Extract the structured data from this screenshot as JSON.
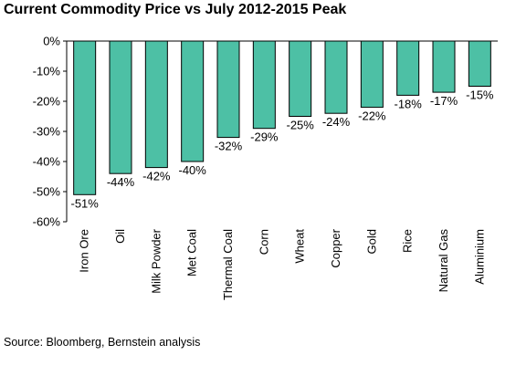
{
  "chart_data": {
    "type": "bar",
    "title": "Current Commodity Price vs July 2012-2015 Peak",
    "source": "Source: Bloomberg, Bernstein analysis",
    "categories": [
      "Iron Ore",
      "Oil",
      "Milk Powder",
      "Met Coal",
      "Thermal Coal",
      "Corn",
      "Wheat",
      "Copper",
      "Gold",
      "Rice",
      "Natural Gas",
      "Aluminium"
    ],
    "values": [
      -51,
      -44,
      -42,
      -40,
      -32,
      -29,
      -25,
      -24,
      -22,
      -18,
      -17,
      -15
    ],
    "data_labels": [
      "-51%",
      "-44%",
      "-42%",
      "-40%",
      "-32%",
      "-29%",
      "-25%",
      "-24%",
      "-22%",
      "-18%",
      "-17%",
      "-15%"
    ],
    "ylim": [
      -60,
      0
    ],
    "yticks": [
      0,
      -10,
      -20,
      -30,
      -40,
      -50,
      -60
    ],
    "ytick_labels": [
      "0%",
      "-10%",
      "-20%",
      "-30%",
      "-40%",
      "-50%",
      "-60%"
    ],
    "xlabel": "",
    "ylabel": "",
    "grid": false,
    "bar_color": "#4dc0a5"
  }
}
